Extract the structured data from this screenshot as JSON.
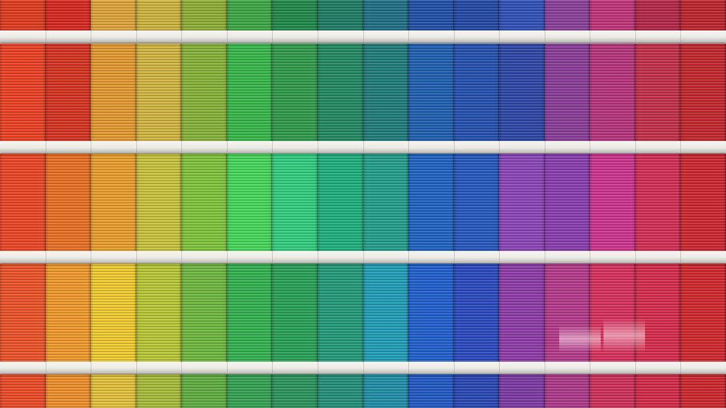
{
  "image": {
    "subject": "colorful-building-facade",
    "background_color": "#cfd0cc",
    "slab_color": "#ecebe6",
    "rows": [
      {
        "colors": [
          "#e23a1c",
          "#d9261f",
          "#e0a53a",
          "#cfb43d",
          "#8fae34",
          "#3da844",
          "#1f8a4a",
          "#1e7e63",
          "#1f6f86",
          "#1f4fa8",
          "#2348a6",
          "#2f50b8",
          "#8a3f9a",
          "#c2337a",
          "#b52548",
          "#c0242c"
        ]
      },
      {
        "colors": [
          "#ee4023",
          "#d7321f",
          "#e49a2e",
          "#d2b640",
          "#86b338",
          "#37b94a",
          "#2f9b4b",
          "#228a62",
          "#1e7d7a",
          "#1e5fb2",
          "#2451b1",
          "#2b46a6",
          "#8a3c98",
          "#b8357d",
          "#c52e48",
          "#c4262d"
        ]
      },
      {
        "colors": [
          "#ef4524",
          "#ec6f22",
          "#ec9f2b",
          "#c9c43b",
          "#7fc43a",
          "#45d85a",
          "#2fcf7f",
          "#1fb07f",
          "#23a08c",
          "#1e63c3",
          "#2458c0",
          "#8b45b8",
          "#8a3db0",
          "#d0338f",
          "#d62d56",
          "#cf2630"
        ]
      },
      {
        "colors": [
          "#f05228",
          "#f29a2a",
          "#f2cd2f",
          "#b9c834",
          "#6fb83f",
          "#32b350",
          "#27a257",
          "#239c79",
          "#1f9fb8",
          "#1f5fd0",
          "#2a49c0",
          "#8e3aa8",
          "#b63a8c",
          "#d92f5c",
          "#d82a4a",
          "#d2272d"
        ]
      },
      {
        "colors": [
          "#ee4a26",
          "#f1902a",
          "#e3c23a",
          "#a8bd39",
          "#5fae40",
          "#34a253",
          "#2a955c",
          "#23917a",
          "#1f8fa7",
          "#2058c5",
          "#2846b5",
          "#7d3aa4",
          "#ae3889",
          "#d12f59",
          "#d52a47",
          "#cf272d"
        ]
      }
    ]
  }
}
